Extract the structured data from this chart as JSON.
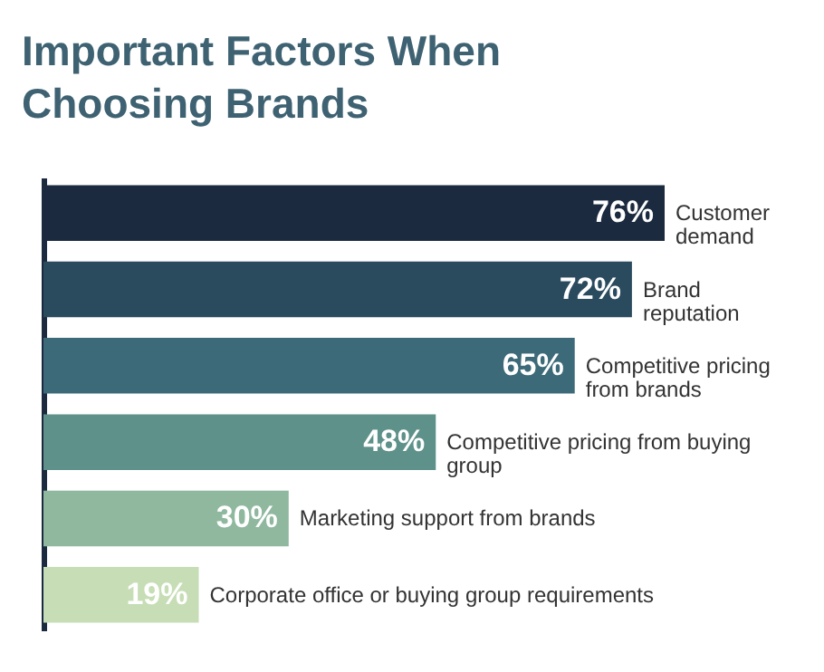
{
  "chart_data": {
    "type": "bar",
    "orientation": "horizontal",
    "title": "Important Factors When Choosing Brands",
    "categories": [
      "Customer demand",
      "Brand reputation",
      "Competitive pricing from brands",
      "Competitive pricing from buying group",
      "Marketing support from brands",
      "Corporate office or buying group requirements"
    ],
    "values": [
      76,
      72,
      65,
      48,
      30,
      19
    ],
    "colors": [
      "#1b2a3f",
      "#2a4a5e",
      "#3d6a79",
      "#5e9189",
      "#8fb89f",
      "#c6ddb5"
    ],
    "value_labels": [
      "76%",
      "72%",
      "65%",
      "48%",
      "30%",
      "19%"
    ]
  }
}
